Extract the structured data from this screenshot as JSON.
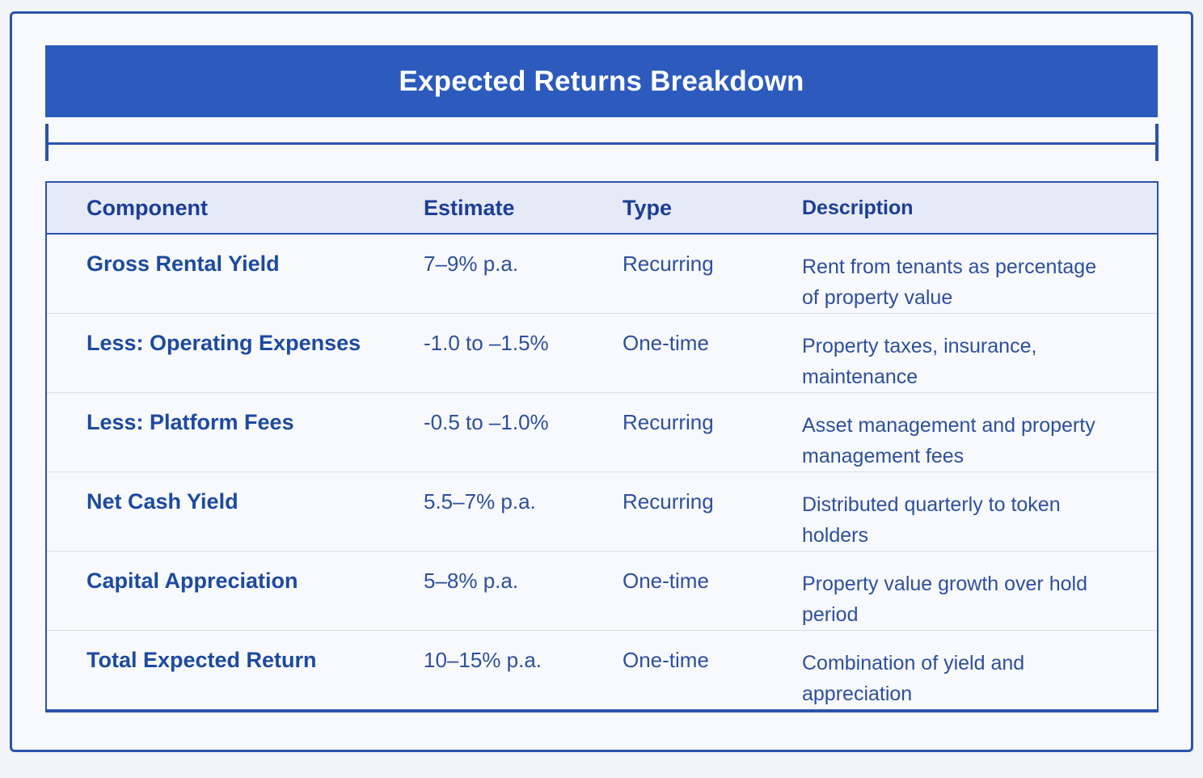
{
  "title": "Expected Returns Breakdown",
  "table": {
    "columns": [
      "Component",
      "Estimate",
      "Type",
      "Description"
    ],
    "rows": [
      {
        "component": "Gross Rental Yield",
        "estimate": "7–9% p.a.",
        "type": "Recurring",
        "description": "Rent from tenants as percentage of property value"
      },
      {
        "component": "Less: Operating Expenses",
        "estimate": "-1.0 to –1.5%",
        "type": "One-time",
        "description": "Property taxes, insurance, maintenance"
      },
      {
        "component": "Less: Platform Fees",
        "estimate": "-0.5 to –1.0%",
        "type": "Recurring",
        "description": "Asset management and property management fees"
      },
      {
        "component": "Net Cash Yield",
        "estimate": "5.5–7% p.a.",
        "type": "Recurring",
        "description": "Distributed quarterly to token holders"
      },
      {
        "component": "Capital Appreciation",
        "estimate": "5–8% p.a.",
        "type": "One-time",
        "description": "Property value growth over hold period"
      },
      {
        "component": "Total Expected Return",
        "estimate": "10–15% p.a.",
        "type": "One-time",
        "description": "Combination of yield and appreciation"
      }
    ]
  },
  "colors": {
    "banner_bg": "#2c5bbd",
    "banner_text": "#ffffff",
    "border_blue": "#2a53ac",
    "header_bg": "#e6eaf7",
    "header_text": "#1c3e97",
    "component_text": "#1c4aa0",
    "body_text": "#2d4f9f",
    "row_divider": "#dbdee9",
    "surface": "#f8f9fc"
  }
}
